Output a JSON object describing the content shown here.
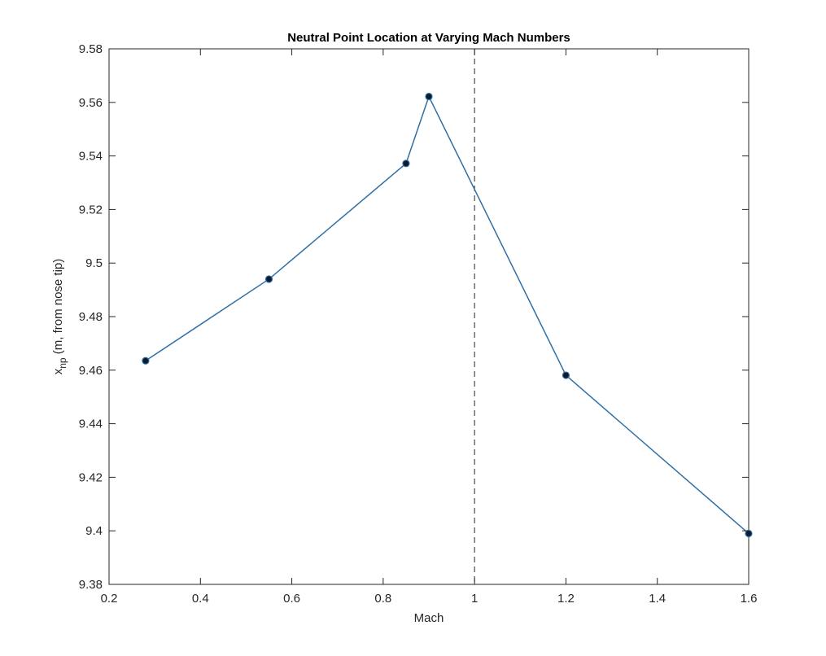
{
  "chart_data": {
    "type": "line",
    "title": "Neutral Point Location at Varying Mach Numbers",
    "xlabel": "Mach",
    "ylabel": {
      "prefix": "x",
      "subscript": "np",
      "suffix": " (m, from nose tip)"
    },
    "xlim": [
      0.2,
      1.6
    ],
    "ylim": [
      9.38,
      9.58
    ],
    "xticks": [
      0.2,
      0.4,
      0.6,
      0.8,
      1.0,
      1.2,
      1.4,
      1.6
    ],
    "xtick_labels": [
      "0.2",
      "0.4",
      "0.6",
      "0.8",
      "1",
      "1.2",
      "1.4",
      "1.6"
    ],
    "yticks": [
      9.38,
      9.4,
      9.42,
      9.44,
      9.46,
      9.48,
      9.5,
      9.52,
      9.54,
      9.56,
      9.58
    ],
    "ytick_labels": [
      "9.38",
      "9.4",
      "9.42",
      "9.44",
      "9.46",
      "9.48",
      "9.5",
      "9.52",
      "9.54",
      "9.56",
      "9.58"
    ],
    "grid": false,
    "series": [
      {
        "x": [
          0.28,
          0.55,
          0.85,
          0.9,
          1.2,
          1.6
        ],
        "y": [
          9.4635,
          9.494,
          9.5372,
          9.5622,
          9.4581,
          9.399
        ],
        "color": "#2f6fa5",
        "marker": "filled-circle",
        "marker_color": "#0b1b2e"
      }
    ],
    "reference_lines": [
      {
        "orientation": "vertical",
        "x": 1.0,
        "style": "dashed",
        "color": "#262626"
      }
    ]
  }
}
